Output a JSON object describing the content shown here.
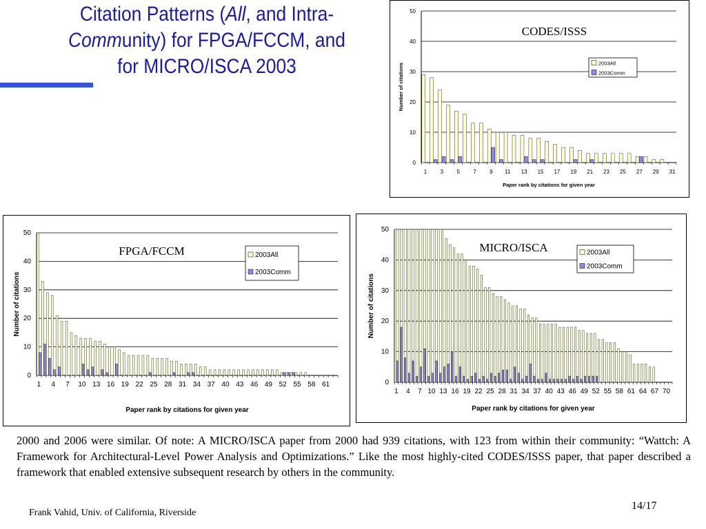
{
  "slide": {
    "title_prefix": "Citation Patterns (",
    "title_all": "All",
    "title_mid1": ", and Intra-",
    "title_comm": "Comm",
    "title_mid2": "unity) for FPGA/FCCM, and",
    "title_line3": "for MICRO/ISCA 2003",
    "body": "2000 and 2006 were similar. Of note: A MICRO/ISCA paper from 2000 had 939 citations, with 123 from within their community: “Wattch: A Framework for Architectural-Level Power Analysis and Optimizations.” Like the most highly-cited CODES/ISSS paper, that paper described a framework that enabled extensive subsequent research by others in the community.",
    "footer_author": "Frank Vahid, Univ. of California, Riverside",
    "footer_page": "14/17",
    "accent_color": "#3355dd",
    "title_color": "#1a1aa6"
  },
  "chart_data": [
    {
      "type": "bar",
      "annotation": "CODES/ISSS",
      "xlabel": "Paper rank by citations for given year",
      "ylabel": "Number of citations",
      "ylim": [
        0,
        50
      ],
      "yticks": [
        0,
        10,
        20,
        30,
        40,
        50
      ],
      "x": [
        1,
        2,
        3,
        4,
        5,
        6,
        7,
        8,
        9,
        10,
        11,
        12,
        13,
        14,
        15,
        16,
        17,
        18,
        19,
        20,
        21,
        22,
        23,
        24,
        25,
        26,
        27,
        28,
        29,
        30,
        31
      ],
      "x_tick_labels": [
        "1",
        "3",
        "5",
        "7",
        "9",
        "11",
        "13",
        "15",
        "17",
        "19",
        "21",
        "23",
        "25",
        "27",
        "29",
        "31"
      ],
      "x_tick_step": 2,
      "grid": true,
      "legend_placement": "right",
      "series": [
        {
          "name": "2003All",
          "color": "#ffffcc",
          "values": [
            29,
            28,
            24,
            19,
            17,
            16,
            13,
            13,
            11,
            10,
            10,
            9,
            9,
            8,
            8,
            7,
            6,
            5,
            5,
            4,
            3,
            3,
            3,
            3,
            3,
            3,
            2,
            2,
            1,
            1,
            0
          ]
        },
        {
          "name": "2003Comm",
          "color": "#8888ee",
          "values": [
            0,
            1,
            2,
            1,
            2,
            0,
            0,
            0,
            5,
            1,
            0,
            0,
            2,
            1,
            1,
            0,
            0,
            0,
            1,
            0,
            1,
            0,
            0,
            0,
            0,
            0,
            2,
            0,
            0,
            0,
            0
          ]
        }
      ]
    },
    {
      "type": "bar",
      "annotation": "FPGA/FCCM",
      "xlabel": "Paper rank by citations for given year",
      "ylabel": "Number of citations",
      "ylim": [
        0,
        50
      ],
      "yticks": [
        0,
        10,
        20,
        30,
        40,
        50
      ],
      "x": [
        1,
        2,
        3,
        4,
        5,
        6,
        7,
        8,
        9,
        10,
        11,
        12,
        13,
        14,
        15,
        16,
        17,
        18,
        19,
        20,
        21,
        22,
        23,
        24,
        25,
        26,
        27,
        28,
        29,
        30,
        31,
        32,
        33,
        34,
        35,
        36,
        37,
        38,
        39,
        40,
        41,
        42,
        43,
        44,
        45,
        46,
        47,
        48,
        49,
        50,
        51,
        52,
        53,
        54,
        55,
        56,
        57,
        58,
        59,
        60,
        61,
        62,
        63
      ],
      "x_tick_labels": [
        "1",
        "4",
        "7",
        "10",
        "13",
        "16",
        "19",
        "22",
        "25",
        "28",
        "31",
        "34",
        "37",
        "40",
        "43",
        "46",
        "49",
        "52",
        "55",
        "58",
        "61"
      ],
      "x_tick_step": 3,
      "grid": true,
      "legend_placement": "top-right",
      "series": [
        {
          "name": "2003All",
          "color": "#ffffcc",
          "values": [
            50,
            33,
            29,
            28,
            21,
            19,
            19,
            15,
            14,
            13,
            13,
            13,
            12,
            12,
            11,
            10,
            10,
            9,
            8,
            7,
            7,
            7,
            7,
            7,
            6,
            6,
            6,
            6,
            5,
            5,
            4,
            4,
            4,
            4,
            3,
            3,
            2,
            2,
            2,
            2,
            2,
            2,
            2,
            2,
            2,
            2,
            2,
            2,
            2,
            2,
            2,
            1,
            1,
            1,
            1,
            1,
            1,
            0,
            0,
            0,
            0,
            0,
            0
          ]
        },
        {
          "name": "2003Comm",
          "color": "#8888ee",
          "values": [
            8,
            11,
            6,
            2,
            3,
            0,
            0,
            0,
            0,
            4,
            2,
            3,
            0,
            2,
            1,
            0,
            4,
            0,
            0,
            0,
            0,
            0,
            0,
            1,
            0,
            0,
            0,
            0,
            1,
            0,
            0,
            1,
            1,
            0,
            0,
            0,
            0,
            0,
            0,
            0,
            0,
            0,
            0,
            0,
            0,
            0,
            0,
            0,
            0,
            0,
            0,
            1,
            1,
            1,
            0,
            0,
            0,
            0,
            0,
            0,
            0,
            0,
            0
          ]
        }
      ]
    },
    {
      "type": "bar",
      "annotation": "MICRO/ISCA",
      "xlabel": "Paper rank by citations for given year",
      "ylabel": "Number of citations",
      "ylim": [
        0,
        50
      ],
      "yticks": [
        0,
        10,
        20,
        30,
        40,
        50
      ],
      "x": [
        1,
        2,
        3,
        4,
        5,
        6,
        7,
        8,
        9,
        10,
        11,
        12,
        13,
        14,
        15,
        16,
        17,
        18,
        19,
        20,
        21,
        22,
        23,
        24,
        25,
        26,
        27,
        28,
        29,
        30,
        31,
        32,
        33,
        34,
        35,
        36,
        37,
        38,
        39,
        40,
        41,
        42,
        43,
        44,
        45,
        46,
        47,
        48,
        49,
        50,
        51,
        52,
        53,
        54,
        55,
        56,
        57,
        58,
        59,
        60,
        61,
        62,
        63,
        64,
        65,
        66,
        67,
        68,
        69,
        70,
        71
      ],
      "x_tick_labels": [
        "1",
        "4",
        "7",
        "10",
        "13",
        "16",
        "19",
        "22",
        "25",
        "28",
        "31",
        "34",
        "37",
        "40",
        "43",
        "46",
        "49",
        "52",
        "55",
        "58",
        "61",
        "64",
        "67",
        "70"
      ],
      "x_tick_step": 3,
      "grid": true,
      "legend_placement": "top-right",
      "series": [
        {
          "name": "2003All",
          "color": "#ffffcc",
          "values": [
            50,
            50,
            50,
            50,
            50,
            50,
            50,
            50,
            50,
            50,
            50,
            50,
            50,
            47,
            45,
            44,
            42,
            42,
            40,
            38,
            38,
            37,
            35,
            31,
            31,
            29,
            28,
            28,
            27,
            26,
            25,
            25,
            24,
            24,
            22,
            21,
            21,
            19,
            19,
            19,
            19,
            19,
            18,
            18,
            18,
            18,
            18,
            17,
            17,
            16,
            16,
            16,
            14,
            14,
            13,
            13,
            13,
            11,
            10,
            10,
            9,
            6,
            6,
            6,
            6,
            5,
            5,
            0,
            0,
            0,
            0
          ]
        },
        {
          "name": "2003Comm",
          "color": "#8888ee",
          "values": [
            7,
            18,
            8,
            3,
            7,
            2,
            5,
            11,
            2,
            3,
            7,
            3,
            5,
            6,
            10,
            2,
            5,
            2,
            1,
            2,
            3,
            1,
            2,
            1,
            3,
            2,
            3,
            4,
            4,
            1,
            5,
            3,
            1,
            2,
            6,
            2,
            1,
            1,
            3,
            1,
            1,
            1,
            1,
            1,
            2,
            1,
            2,
            1,
            2,
            2,
            2,
            2,
            0,
            0,
            0,
            0,
            0,
            0,
            0,
            0,
            0,
            0,
            0,
            0,
            0,
            0,
            0,
            0,
            0,
            0,
            0
          ]
        }
      ]
    }
  ]
}
